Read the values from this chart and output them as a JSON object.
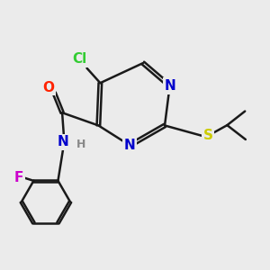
{
  "bg_color": "#ebebeb",
  "bond_color": "#1a1a1a",
  "bond_width": 1.8,
  "atom_colors": {
    "Cl": "#33cc33",
    "N": "#0000cc",
    "O": "#ff2200",
    "S": "#cccc00",
    "F": "#cc00cc",
    "H": "#888888",
    "C": "#1a1a1a"
  },
  "font_size": 11
}
